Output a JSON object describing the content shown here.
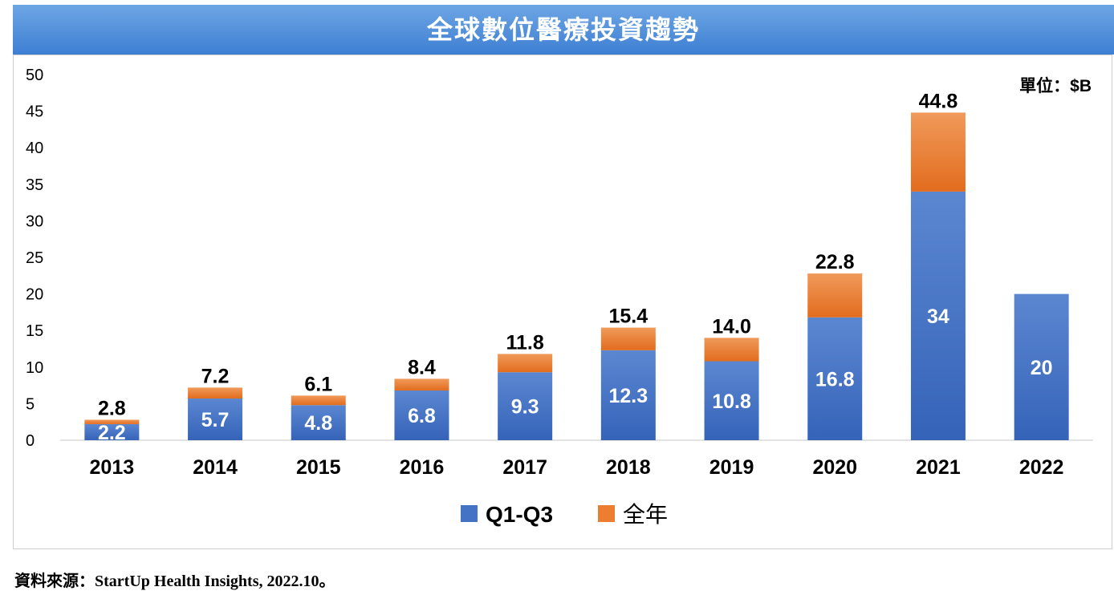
{
  "title": "全球數位醫療投資趨勢",
  "unit_label": "單位：$B",
  "source": "資料來源：StartUp Health Insights, 2022.10。",
  "colors": {
    "q1q3": "#4472c4",
    "full_year": "#ed7d31",
    "title_bar": "#4a89dc"
  },
  "chart_data": {
    "type": "bar",
    "stacked": true,
    "categories": [
      "2013",
      "2014",
      "2015",
      "2016",
      "2017",
      "2018",
      "2019",
      "2020",
      "2021",
      "2022"
    ],
    "series": [
      {
        "name": "Q1-Q3",
        "values": [
          2.2,
          5.7,
          4.8,
          6.8,
          9.3,
          12.3,
          10.8,
          16.8,
          34,
          20
        ],
        "labels": [
          "2.2",
          "5.7",
          "4.8",
          "6.8",
          "9.3",
          "12.3",
          "10.8",
          "16.8",
          "34",
          "20"
        ]
      },
      {
        "name": "全年",
        "values": [
          0.6,
          1.5,
          1.3,
          1.6,
          2.5,
          3.1,
          3.2,
          6.0,
          10.8,
          null
        ]
      }
    ],
    "totals": [
      2.8,
      7.2,
      6.1,
      8.4,
      11.8,
      15.4,
      14.0,
      22.8,
      44.8,
      null
    ],
    "total_labels": [
      "2.8",
      "7.2",
      "6.1",
      "8.4",
      "11.8",
      "15.4",
      "14.0",
      "22.8",
      "44.8",
      ""
    ],
    "ylim": [
      0,
      50
    ],
    "yticks": [
      0,
      5,
      10,
      15,
      20,
      25,
      30,
      35,
      40,
      45,
      50
    ],
    "grid": false,
    "legend_position": "bottom"
  }
}
